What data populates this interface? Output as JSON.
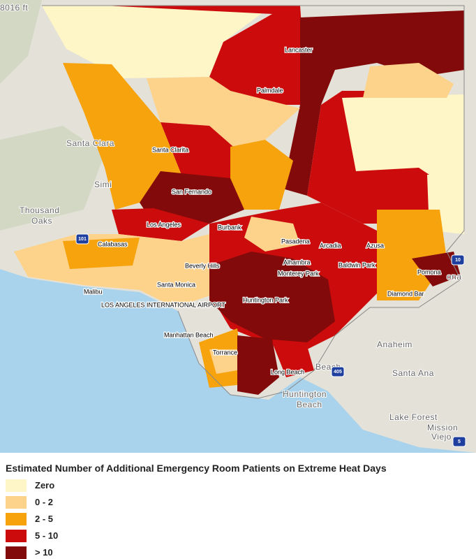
{
  "map": {
    "corner_label": "8016 ft",
    "labels": [
      "Lancaster",
      "Palmdale",
      "Santa Clarita",
      "San Fernando",
      "Los Angeles",
      "Burbank",
      "Calabasas",
      "Pasadena",
      "Arcadia",
      "Azusa",
      "Beverly Hills",
      "Alhambra",
      "Baldwin Park",
      "Pomona",
      "Monterey Park",
      "Santa Monica",
      "Malibu",
      "LOS ANGELES INTERNATIONAL AIRPORT",
      "Huntington Park",
      "Diamond Bar",
      "Manhattan Beach",
      "Torrance",
      "Long Beach"
    ],
    "basemap_labels": [
      "Simi",
      "Thousand",
      "Oaks",
      "Santa Clara",
      "Anaheim",
      "Santa Ana",
      "Huntington",
      "Beach",
      "Lake Forest",
      "Mission",
      "Viejo",
      "Beach",
      "ona"
    ],
    "shields": [
      "101",
      "10",
      "405",
      "5"
    ]
  },
  "legend": {
    "title": "Estimated Number of Additional Emergency Room Patients on Extreme Heat Days",
    "items": [
      {
        "label": "Zero",
        "color": "#fff6c7"
      },
      {
        "label": "0 - 2",
        "color": "#fdd28a"
      },
      {
        "label": "2 - 5",
        "color": "#f6a30e"
      },
      {
        "label": "5 - 10",
        "color": "#cc0c0c"
      },
      {
        "label": "> 10",
        "color": "#830a0a"
      }
    ]
  }
}
